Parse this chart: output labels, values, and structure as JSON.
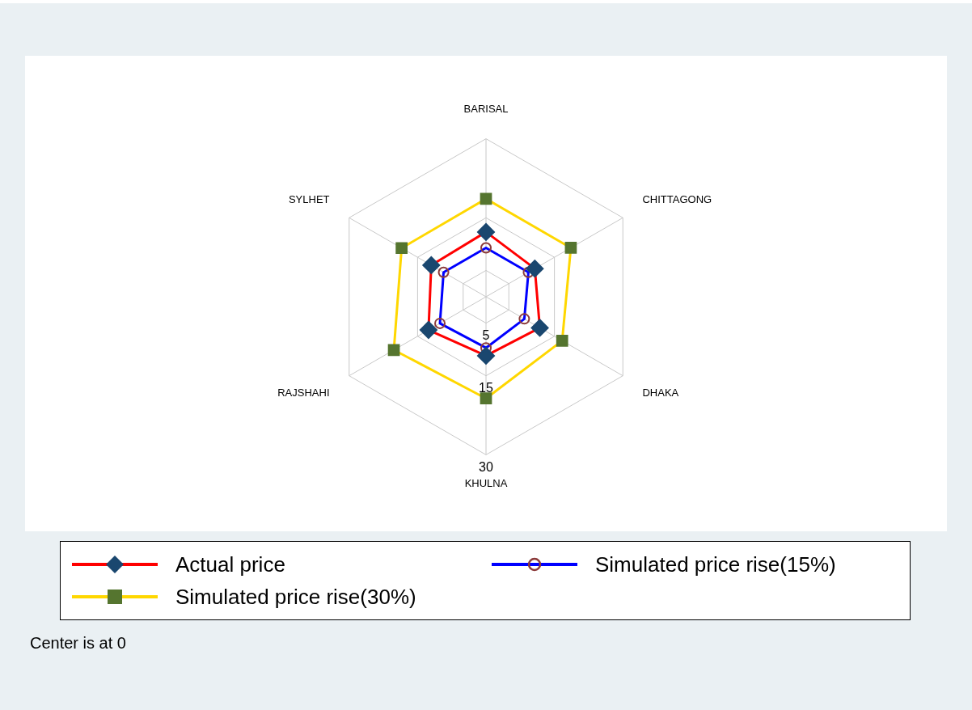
{
  "chart_data": {
    "type": "radar",
    "categories": [
      "BARISAL",
      "CHITTAGONG",
      "DHAKA",
      "KHULNA",
      "RAJSHAHI",
      "SYLHET"
    ],
    "series": [
      {
        "name": "Actual price",
        "color": "#ff0000",
        "marker": "diamond",
        "values": [
          12.3,
          10.7,
          11.8,
          11.2,
          12.6,
          12.0
        ]
      },
      {
        "name": "Simulated price rise(15%)",
        "color": "#0000ff",
        "marker": "circle",
        "values": [
          9.3,
          9.3,
          8.4,
          9.7,
          10.1,
          9.3
        ]
      },
      {
        "name": "Simulated price rise(30%)",
        "color": "#ffd700",
        "marker": "square",
        "values": [
          18.6,
          18.6,
          16.7,
          19.3,
          20.2,
          18.5
        ]
      }
    ],
    "ylim": [
      0,
      30
    ],
    "yticks": [
      5,
      15,
      30
    ],
    "grid": true,
    "legend": "bottom",
    "annotations": [
      "Center is at 0"
    ]
  }
}
